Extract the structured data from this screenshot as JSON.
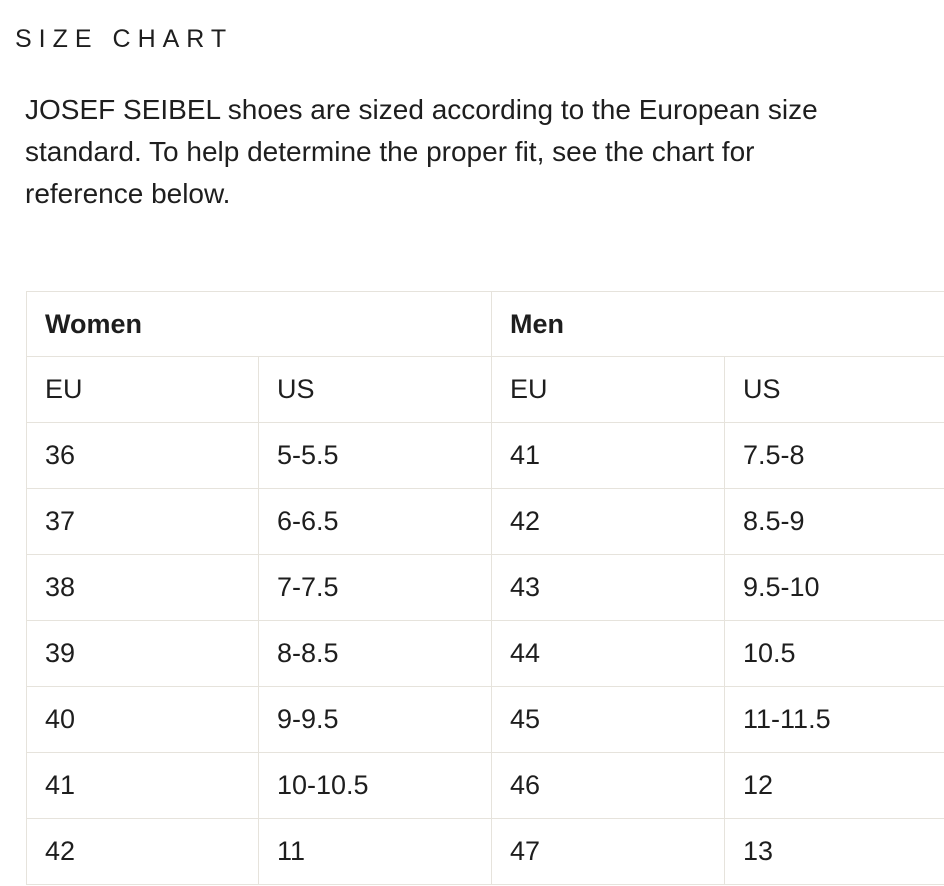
{
  "page": {
    "title": "SIZE CHART"
  },
  "intro": {
    "text": "JOSEF SEIBEL shoes are sized according to the European size standard. To help determine the proper fit, see the chart for reference below.",
    "lines": [
      "JOSEF SEIBEL shoes are sized according to the European size",
      "standard. To help determine the proper fit, see the chart for",
      "reference below."
    ]
  },
  "size_chart": {
    "groups": {
      "women": "Women",
      "men": "Men"
    },
    "columns": [
      "EU",
      "US",
      "EU",
      "US"
    ],
    "rows": [
      [
        "36",
        "5-5.5",
        "41",
        "7.5-8"
      ],
      [
        "37",
        "6-6.5",
        "42",
        "8.5-9"
      ],
      [
        "38",
        "7-7.5",
        "43",
        "9.5-10"
      ],
      [
        "39",
        "8-8.5",
        "44",
        "10.5"
      ],
      [
        "40",
        "9-9.5",
        "45",
        "11-11.5"
      ],
      [
        "41",
        "10-10.5",
        "46",
        "12"
      ],
      [
        "42",
        "11",
        "47",
        "13"
      ]
    ]
  },
  "colors": {
    "text": "#1e1e1e",
    "table_border": "#e6e3dc",
    "background": "#ffffff"
  }
}
